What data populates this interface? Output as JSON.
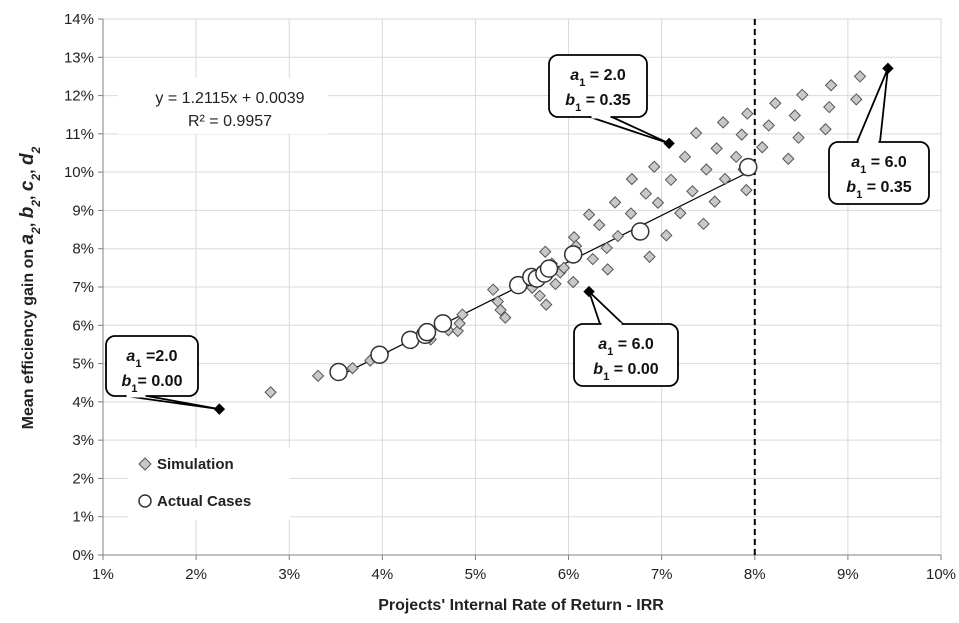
{
  "chart_data": {
    "type": "scatter",
    "xlabel": "Projects' Internal Rate of Return - IRR",
    "ylabel_parts": [
      "Mean efficiency gain on ",
      "a",
      "2",
      ", ",
      "b",
      "2",
      ", ",
      "c",
      "2",
      ", ",
      "d",
      "2"
    ],
    "xlim": [
      0.01,
      0.1
    ],
    "ylim": [
      0.0,
      0.14
    ],
    "x_ticks": [
      0.01,
      0.02,
      0.03,
      0.04,
      0.05,
      0.06,
      0.07,
      0.08,
      0.09,
      0.1
    ],
    "x_tick_labels": [
      "1%",
      "2%",
      "3%",
      "4%",
      "5%",
      "6%",
      "7%",
      "8%",
      "9%",
      "10%"
    ],
    "y_ticks": [
      0.0,
      0.01,
      0.02,
      0.03,
      0.04,
      0.05,
      0.06,
      0.07,
      0.08,
      0.09,
      0.1,
      0.11,
      0.12,
      0.13,
      0.14
    ],
    "y_tick_labels": [
      "0%",
      "1%",
      "2%",
      "3%",
      "4%",
      "5%",
      "6%",
      "7%",
      "8%",
      "9%",
      "10%",
      "11%",
      "12%",
      "13%",
      "14%"
    ],
    "grid": true,
    "legend_placement": "bottom-left",
    "vertical_reference_line_x": 0.08,
    "trendline": {
      "slope": 1.2115,
      "intercept": 0.0039,
      "x_range": [
        0.0353,
        0.0793
      ],
      "equation_label": "y = 1.2115x + 0.0039",
      "r2_label": "R² = 0.9957"
    },
    "series": [
      {
        "name": "Simulation",
        "marker": "diamond",
        "points": [
          [
            0.028,
            0.0425
          ],
          [
            0.0331,
            0.0468
          ],
          [
            0.0368,
            0.0488
          ],
          [
            0.0387,
            0.0508
          ],
          [
            0.0401,
            0.0528
          ],
          [
            0.0432,
            0.0553
          ],
          [
            0.0452,
            0.0563
          ],
          [
            0.0471,
            0.0587
          ],
          [
            0.0481,
            0.0585
          ],
          [
            0.0483,
            0.0605
          ],
          [
            0.0486,
            0.0628
          ],
          [
            0.0519,
            0.0693
          ],
          [
            0.0524,
            0.0662
          ],
          [
            0.0527,
            0.064
          ],
          [
            0.0532,
            0.062
          ],
          [
            0.0561,
            0.0698
          ],
          [
            0.0569,
            0.0677
          ],
          [
            0.0575,
            0.0792
          ],
          [
            0.0576,
            0.0654
          ],
          [
            0.0582,
            0.0761
          ],
          [
            0.0586,
            0.0708
          ],
          [
            0.0591,
            0.0738
          ],
          [
            0.0595,
            0.075
          ],
          [
            0.0605,
            0.0713
          ],
          [
            0.0606,
            0.083
          ],
          [
            0.0608,
            0.0807
          ],
          [
            0.0622,
            0.0889
          ],
          [
            0.0626,
            0.0773
          ],
          [
            0.0633,
            0.0862
          ],
          [
            0.0641,
            0.0802
          ],
          [
            0.0642,
            0.0746
          ],
          [
            0.065,
            0.0921
          ],
          [
            0.0653,
            0.0833
          ],
          [
            0.0667,
            0.0892
          ],
          [
            0.0668,
            0.0982
          ],
          [
            0.0683,
            0.0944
          ],
          [
            0.0687,
            0.0779
          ],
          [
            0.0692,
            0.1014
          ],
          [
            0.0696,
            0.092
          ],
          [
            0.0705,
            0.0835
          ],
          [
            0.071,
            0.098
          ],
          [
            0.072,
            0.0893
          ],
          [
            0.0725,
            0.104
          ],
          [
            0.0733,
            0.095
          ],
          [
            0.0737,
            0.1102
          ],
          [
            0.0745,
            0.0865
          ],
          [
            0.0748,
            0.1007
          ],
          [
            0.0757,
            0.0923
          ],
          [
            0.0759,
            0.1062
          ],
          [
            0.0766,
            0.113
          ],
          [
            0.0768,
            0.0982
          ],
          [
            0.078,
            0.104
          ],
          [
            0.0786,
            0.1098
          ],
          [
            0.0788,
            0.1007
          ],
          [
            0.0791,
            0.0953
          ],
          [
            0.0792,
            0.1153
          ],
          [
            0.0808,
            0.1065
          ],
          [
            0.0815,
            0.1122
          ],
          [
            0.0822,
            0.118
          ],
          [
            0.0836,
            0.1035
          ],
          [
            0.0843,
            0.1148
          ],
          [
            0.0847,
            0.109
          ],
          [
            0.0851,
            0.1202
          ],
          [
            0.0876,
            0.1112
          ],
          [
            0.088,
            0.117
          ],
          [
            0.0882,
            0.1227
          ],
          [
            0.0909,
            0.119
          ],
          [
            0.0913,
            0.125
          ]
        ]
      },
      {
        "name": "Actual Cases",
        "marker": "circle",
        "points": [
          [
            0.0353,
            0.0478
          ],
          [
            0.0397,
            0.0523
          ],
          [
            0.043,
            0.0562
          ],
          [
            0.0446,
            0.0575
          ],
          [
            0.0448,
            0.0582
          ],
          [
            0.0465,
            0.0605
          ],
          [
            0.0546,
            0.0705
          ],
          [
            0.056,
            0.0726
          ],
          [
            0.0566,
            0.0722
          ],
          [
            0.0574,
            0.0735
          ],
          [
            0.0579,
            0.0748
          ],
          [
            0.0605,
            0.0785
          ],
          [
            0.0677,
            0.0845
          ],
          [
            0.0793,
            0.1013
          ]
        ]
      }
    ],
    "highlight_points": [
      {
        "x": 0.0225,
        "y": 0.0381,
        "lines": [
          [
            "a",
            "1",
            " =2.0"
          ],
          [
            "b",
            "1",
            "= 0.00"
          ]
        ]
      },
      {
        "x": 0.0622,
        "y": 0.0688,
        "lines": [
          [
            "a",
            "1",
            " = 6.0"
          ],
          [
            "b",
            "1",
            " = 0.00"
          ]
        ]
      },
      {
        "x": 0.0708,
        "y": 0.1075,
        "lines": [
          [
            "a",
            "1",
            " = 2.0"
          ],
          [
            "b",
            "1",
            " = 0.35"
          ]
        ]
      },
      {
        "x": 0.0943,
        "y": 0.1271,
        "lines": [
          [
            "a",
            "1",
            " = 6.0"
          ],
          [
            "b",
            "1",
            " = 0.35"
          ]
        ]
      }
    ],
    "colors": {
      "diamond_fill": "#c8c8c8",
      "diamond_stroke": "#555555",
      "circle_fill": "#ffffff",
      "circle_stroke": "#333333",
      "highlight": "#000000",
      "trendline": "#000000",
      "grid": "#d9d9d9",
      "axis": "#808080"
    }
  }
}
